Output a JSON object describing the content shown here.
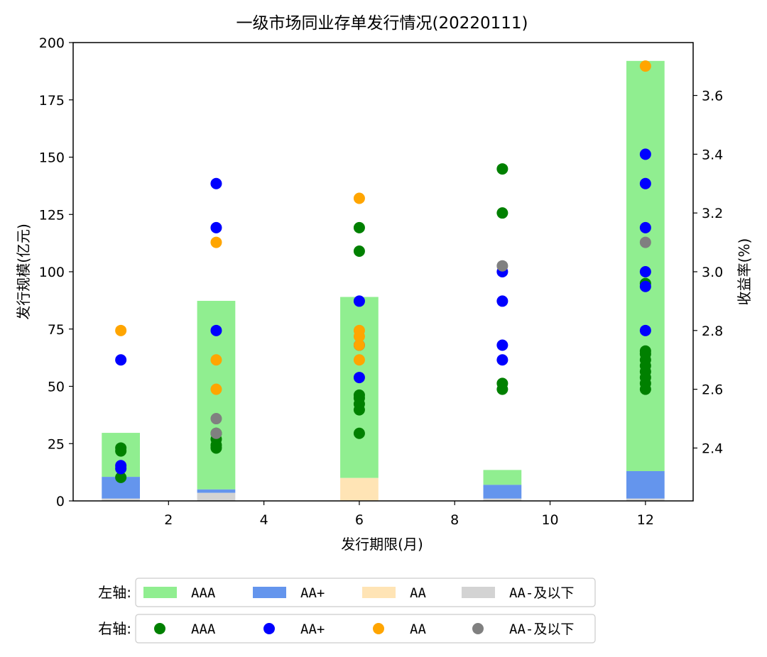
{
  "chart_data": {
    "type": "bar+scatter",
    "title": "一级市场同业存单发行情况(20220111)",
    "xlabel": "发行期限(月)",
    "ylabel_left": "发行规模(亿元)",
    "ylabel_right": "收益率(%)",
    "xlim": [
      0.0,
      13.0
    ],
    "ylim_left": [
      0,
      200
    ],
    "ylim_right": [
      2.22,
      3.78
    ],
    "x_ticks": [
      2,
      4,
      6,
      8,
      10,
      12
    ],
    "y_left_ticks": [
      0,
      25,
      50,
      75,
      100,
      125,
      150,
      175,
      200
    ],
    "y_right_ticks": [
      "2.4",
      "2.6",
      "2.8",
      "3.0",
      "3.2",
      "3.4",
      "3.6"
    ],
    "bar_width": 0.8,
    "bar_series": [
      {
        "name": "AAA",
        "color": "#90ee90",
        "data": [
          {
            "x": 1,
            "base": 10.5,
            "value": 19.2
          },
          {
            "x": 3,
            "base": 5.0,
            "value": 82.3
          },
          {
            "x": 6,
            "base": 10.0,
            "value": 79.0
          },
          {
            "x": 9,
            "base": 7.0,
            "value": 6.5
          },
          {
            "x": 12,
            "base": 13.0,
            "value": 179.0
          }
        ]
      },
      {
        "name": "AA+",
        "color": "#6495ed",
        "data": [
          {
            "x": 1,
            "base": 1.0,
            "value": 9.5
          },
          {
            "x": 3,
            "base": 3.5,
            "value": 1.5
          },
          {
            "x": 9,
            "base": 1.0,
            "value": 6.0
          },
          {
            "x": 12,
            "base": 1.0,
            "value": 12.0
          }
        ]
      },
      {
        "name": "AA",
        "color": "#ffe4b5",
        "data": [
          {
            "x": 6,
            "base": 0,
            "value": 10.0
          }
        ]
      },
      {
        "name": "AA-及以下",
        "color": "#d3d3d3",
        "data": [
          {
            "x": 1,
            "base": 0,
            "value": 1.0
          },
          {
            "x": 3,
            "base": 0,
            "value": 3.5
          },
          {
            "x": 9,
            "base": 0,
            "value": 1.0
          },
          {
            "x": 12,
            "base": 0,
            "value": 1.0
          }
        ]
      }
    ],
    "scatter_series": [
      {
        "name": "AAA",
        "color": "#008000",
        "points": [
          [
            1,
            2.3
          ],
          [
            1,
            2.39
          ],
          [
            1,
            2.4
          ],
          [
            3,
            2.4
          ],
          [
            3,
            2.41
          ],
          [
            3,
            2.43
          ],
          [
            3,
            2.45
          ],
          [
            6,
            2.45
          ],
          [
            6,
            2.53
          ],
          [
            6,
            2.55
          ],
          [
            6,
            2.57
          ],
          [
            6,
            2.58
          ],
          [
            6,
            3.07
          ],
          [
            6,
            3.15
          ],
          [
            9,
            2.6
          ],
          [
            9,
            2.62
          ],
          [
            9,
            3.2
          ],
          [
            9,
            3.35
          ],
          [
            12,
            2.6
          ],
          [
            12,
            2.62
          ],
          [
            12,
            2.64
          ],
          [
            12,
            2.66
          ],
          [
            12,
            2.68
          ],
          [
            12,
            2.7
          ],
          [
            12,
            2.72
          ],
          [
            12,
            2.73
          ],
          [
            12,
            2.96
          ]
        ]
      },
      {
        "name": "AA+",
        "color": "#0000ff",
        "points": [
          [
            1,
            2.33
          ],
          [
            1,
            2.34
          ],
          [
            1,
            2.7
          ],
          [
            3,
            2.8
          ],
          [
            3,
            3.15
          ],
          [
            3,
            3.3
          ],
          [
            6,
            2.64
          ],
          [
            6,
            2.75
          ],
          [
            6,
            2.9
          ],
          [
            9,
            2.7
          ],
          [
            9,
            2.75
          ],
          [
            9,
            2.9
          ],
          [
            9,
            3.0
          ],
          [
            12,
            2.8
          ],
          [
            12,
            2.95
          ],
          [
            12,
            3.0
          ],
          [
            12,
            3.15
          ],
          [
            12,
            3.3
          ],
          [
            12,
            3.4
          ]
        ]
      },
      {
        "name": "AA",
        "color": "#ffa500",
        "points": [
          [
            1,
            2.8
          ],
          [
            3,
            2.6
          ],
          [
            3,
            2.7
          ],
          [
            3,
            3.1
          ],
          [
            6,
            2.7
          ],
          [
            6,
            2.75
          ],
          [
            6,
            2.78
          ],
          [
            6,
            2.8
          ],
          [
            6,
            3.25
          ],
          [
            12,
            3.7
          ]
        ]
      },
      {
        "name": "AA-及以下",
        "color": "#808080",
        "points": [
          [
            3,
            2.45
          ],
          [
            3,
            2.5
          ],
          [
            9,
            3.02
          ],
          [
            12,
            3.1
          ]
        ]
      }
    ],
    "legend_rows": [
      {
        "label": "左轴:",
        "type": "bar",
        "entries": [
          "AAA",
          "AA+",
          "AA",
          "AA-及以下"
        ],
        "colors": [
          "#90ee90",
          "#6495ed",
          "#ffe4b5",
          "#d3d3d3"
        ]
      },
      {
        "label": "右轴:",
        "type": "marker",
        "entries": [
          "AAA",
          "AA+",
          "AA",
          "AA-及以下"
        ],
        "colors": [
          "#008000",
          "#0000ff",
          "#ffa500",
          "#808080"
        ]
      }
    ],
    "legend_placement": "bottom"
  }
}
